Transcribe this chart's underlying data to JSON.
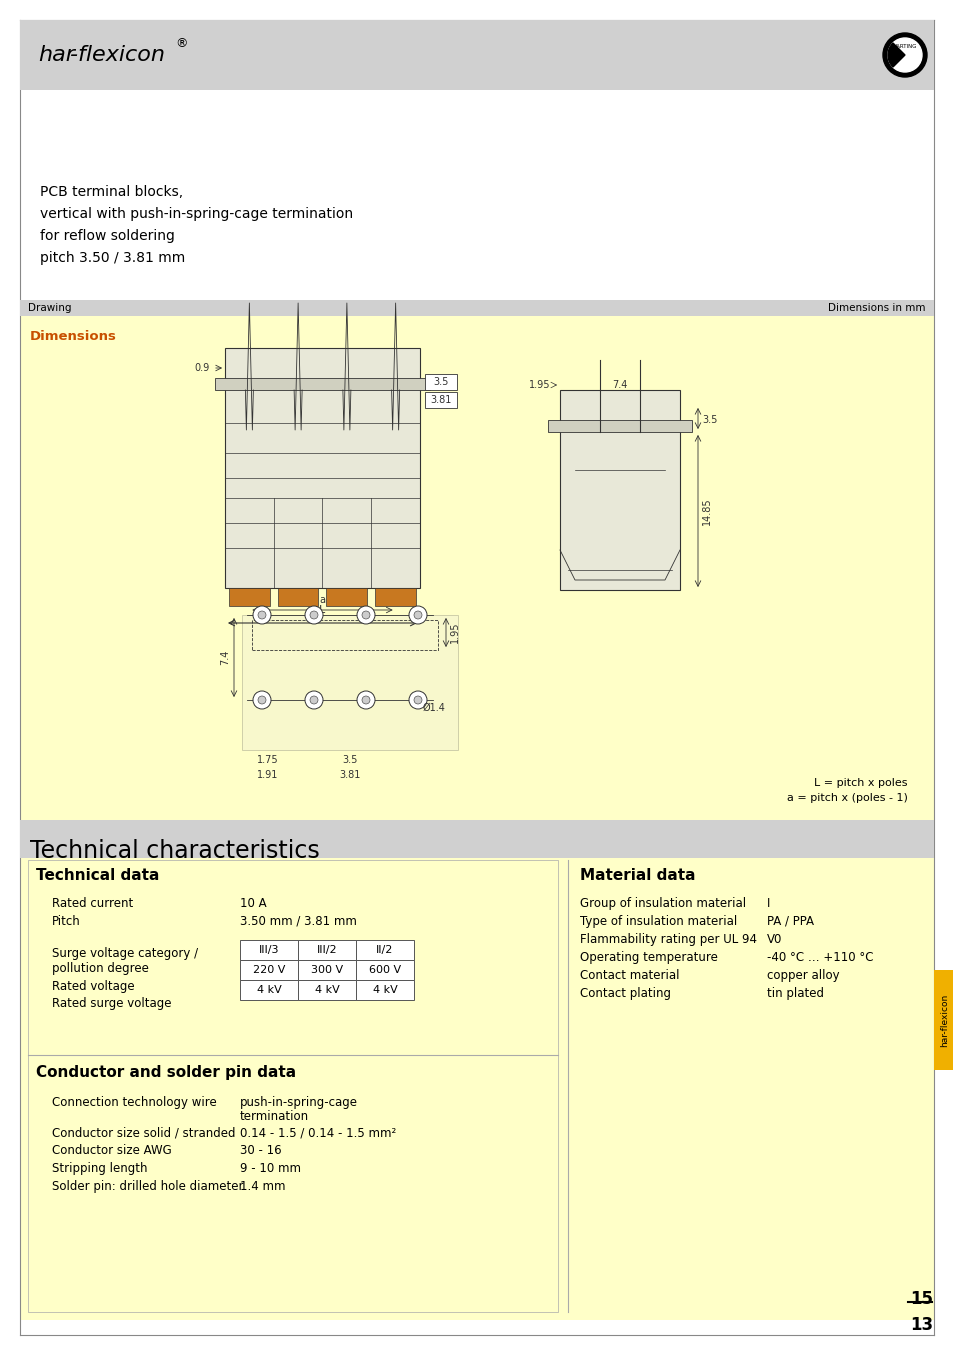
{
  "bg_color": "#ffffff",
  "page_bg": "#ffffff",
  "header_bg": "#d0d0d0",
  "yellow_bg": "#fffff0",
  "tech_char_bg": "#d0d0d0",
  "header_title_italic": "har",
  "header_title_rest": "-flexicon",
  "header_title_sup": "®",
  "tech_char_title": "Technical characteristics",
  "tech_data_title": "Technical data",
  "material_data_title": "Material data",
  "conductor_title": "Conductor and solder pin data",
  "table_headers": [
    "III/3",
    "III/2",
    "II/2"
  ],
  "table_row1": [
    "220 V",
    "300 V",
    "600 V"
  ],
  "table_row2": [
    "4 kV",
    "4 kV",
    "4 kV"
  ],
  "material_rows": [
    [
      "Group of insulation material",
      "I"
    ],
    [
      "Type of insulation material",
      "PA / PPA"
    ],
    [
      "Flammability rating per UL 94",
      "V0"
    ],
    [
      "Operating temperature",
      "-40 °C … +110 °C"
    ],
    [
      "Contact material",
      "copper alloy"
    ],
    [
      "Contact plating",
      "tin plated"
    ]
  ],
  "conductor_rows": [
    [
      "Connection technology wire",
      "push-in-spring-cage\ntermination"
    ],
    [
      "Conductor size solid / stranded",
      "0.14 - 1.5 / 0.14 - 1.5 mm²"
    ],
    [
      "Conductor size AWG",
      "30 - 16"
    ],
    [
      "Stripping length",
      "9 - 10 mm"
    ],
    [
      "Solder pin: drilled hole diameter",
      "1.4 mm"
    ]
  ],
  "description_lines": [
    "PCB terminal blocks,",
    "vertical with push-in-spring-cage termination",
    "for reflow soldering",
    "pitch 3.50 / 3.81 mm"
  ],
  "dim_notes": [
    "L = pitch x poles",
    "a = pitch x (poles - 1)"
  ],
  "page_num": "15",
  "page_denom": "13",
  "har_flexicon_tab": "har-flexicon",
  "yellow_light": "#ffffcc",
  "drawing_label": "Drawing",
  "dimensions_label": "Dimensions in mm",
  "dimensions_title": "Dimensions"
}
